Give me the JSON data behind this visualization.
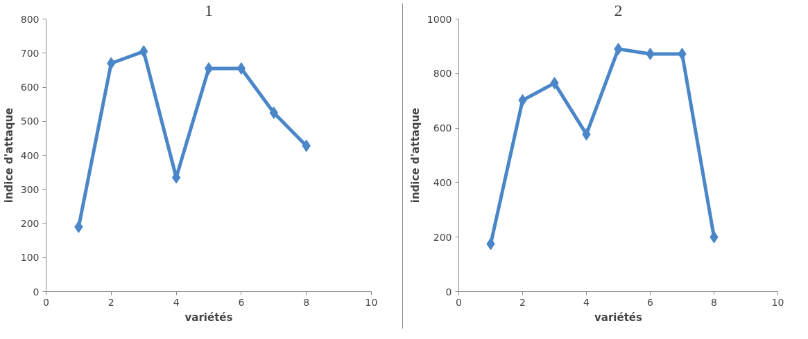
{
  "chart_data": [
    {
      "type": "line",
      "title": "1",
      "xlabel": "variétés",
      "ylabel": "indice d'attaque",
      "x": [
        1,
        2,
        3,
        4,
        5,
        6,
        7,
        8
      ],
      "series": [
        {
          "color": "#4a86c8",
          "values": [
            190,
            670,
            705,
            335,
            655,
            655,
            525,
            428
          ]
        }
      ],
      "xlim": [
        0,
        10
      ],
      "xticks": [
        0,
        2,
        4,
        6,
        8,
        10
      ],
      "ylim": [
        0,
        800
      ],
      "yticks": [
        0,
        100,
        200,
        300,
        400,
        500,
        600,
        700,
        800
      ],
      "grid": false,
      "marker": "diamond",
      "line_style": "solid"
    },
    {
      "type": "line",
      "title": "2",
      "xlabel": "variétés",
      "ylabel": "indice d'attaque",
      "x": [
        1,
        2,
        3,
        4,
        5,
        6,
        7,
        8
      ],
      "series": [
        {
          "color": "#4a86c8",
          "values": [
            175,
            702,
            765,
            577,
            890,
            872,
            872,
            200
          ]
        }
      ],
      "xlim": [
        0,
        10
      ],
      "xticks": [
        0,
        2,
        4,
        6,
        8,
        10
      ],
      "ylim": [
        0,
        1000
      ],
      "yticks": [
        0,
        200,
        400,
        600,
        800,
        1000
      ],
      "grid": false,
      "marker": "diamond",
      "line_style": "solid"
    }
  ]
}
